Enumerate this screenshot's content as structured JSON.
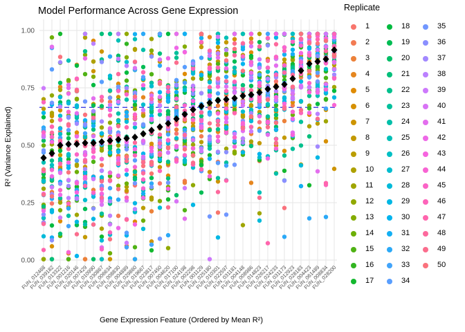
{
  "chart_data": {
    "type": "scatter",
    "title": "Model Performance Across Gene Expression",
    "xlabel": "Gene Expression Feature (Ordered by Mean R²)",
    "ylabel": "R² (Variance Explained)",
    "ylim": [
      0,
      1
    ],
    "yticks": [
      0.0,
      0.25,
      0.5,
      0.75,
      1.0
    ],
    "ytick_labels": [
      "0.00",
      "0.25",
      "0.50",
      "0.75",
      "1.00"
    ],
    "grid": true,
    "background": "#ffffff",
    "gridline_color": "#e6e6e6",
    "tick_label_color": "#4d4d4d",
    "reference_line": {
      "value": 0.665,
      "style": "dashed",
      "color": "#2b2bdf"
    },
    "mean_marker": {
      "shape": "diamond",
      "color": "#000000",
      "meaning": "mean R² per feature"
    },
    "n_features": 36,
    "n_replicates": 50,
    "point_seed": 42,
    "outlier_rate": 0.07,
    "legend": {
      "title": "Replicate",
      "position": "right",
      "columns": 3,
      "rows_per_column": 17,
      "entries": [
        "1",
        "2",
        "3",
        "4",
        "5",
        "6",
        "7",
        "8",
        "9",
        "10",
        "11",
        "12",
        "13",
        "14",
        "15",
        "16",
        "17",
        "18",
        "19",
        "20",
        "21",
        "22",
        "23",
        "24",
        "25",
        "26",
        "27",
        "28",
        "29",
        "30",
        "31",
        "32",
        "33",
        "34",
        "35",
        "36",
        "37",
        "38",
        "39",
        "40",
        "41",
        "42",
        "43",
        "44",
        "45",
        "46",
        "47",
        "48",
        "49",
        "50"
      ]
    },
    "palette_anchors": [
      "#F8766D",
      "#DE8C00",
      "#B79F00",
      "#7CAE00",
      "#00BA38",
      "#00C08B",
      "#00BFC4",
      "#00B4F0",
      "#619CFF",
      "#C77CFF",
      "#F564E3",
      "#FF64B0",
      "#F8766D"
    ],
    "features": [
      {
        "label": "FUN_012468",
        "mean_r2": 0.445,
        "sd": 0.23
      },
      {
        "label": "FUN_039182",
        "mean_r2": 0.465,
        "sd": 0.23
      },
      {
        "label": "FUN_013322",
        "mean_r2": 0.5,
        "sd": 0.23
      },
      {
        "label": "FUN_001216",
        "mean_r2": 0.505,
        "sd": 0.23
      },
      {
        "label": "FUN_020146",
        "mean_r2": 0.505,
        "sd": 0.23
      },
      {
        "label": "FUN_007429",
        "mean_r2": 0.51,
        "sd": 0.23
      },
      {
        "label": "FUN_010990",
        "mean_r2": 0.51,
        "sd": 0.23
      },
      {
        "label": "FUN_030867",
        "mean_r2": 0.515,
        "sd": 0.23
      },
      {
        "label": "FUN_006634",
        "mean_r2": 0.52,
        "sd": 0.23
      },
      {
        "label": "FUN_008830",
        "mean_r2": 0.525,
        "sd": 0.22
      },
      {
        "label": "FUN_004889",
        "mean_r2": 0.53,
        "sd": 0.22
      },
      {
        "label": "FUN_029860",
        "mean_r2": 0.535,
        "sd": 0.22
      },
      {
        "label": "FUN_019667",
        "mean_r2": 0.55,
        "sd": 0.22
      },
      {
        "label": "FUN_023817",
        "mean_r2": 0.565,
        "sd": 0.21
      },
      {
        "label": "FUN_007450",
        "mean_r2": 0.58,
        "sd": 0.21
      },
      {
        "label": "FUN_004620",
        "mean_r2": 0.595,
        "sd": 0.21
      },
      {
        "label": "FUN_017100",
        "mean_r2": 0.615,
        "sd": 0.2
      },
      {
        "label": "FUN_024198",
        "mean_r2": 0.635,
        "sd": 0.2
      },
      {
        "label": "FUN_002298",
        "mean_r2": 0.655,
        "sd": 0.19
      },
      {
        "label": "FUN_001129",
        "mean_r2": 0.67,
        "sd": 0.19
      },
      {
        "label": "FUN_025180",
        "mean_r2": 0.685,
        "sd": 0.18
      },
      {
        "label": "FUN_010301",
        "mean_r2": 0.695,
        "sd": 0.18
      },
      {
        "label": "FUN_022597",
        "mean_r2": 0.7,
        "sd": 0.18
      },
      {
        "label": "FUN_031181",
        "mean_r2": 0.705,
        "sd": 0.17
      },
      {
        "label": "FUN_004148",
        "mean_r2": 0.715,
        "sd": 0.17
      },
      {
        "label": "FUN_008986",
        "mean_r2": 0.72,
        "sd": 0.17
      },
      {
        "label": "FUN_014823",
        "mean_r2": 0.73,
        "sd": 0.16
      },
      {
        "label": "FUN_026217",
        "mean_r2": 0.745,
        "sd": 0.16
      },
      {
        "label": "FUN_024233",
        "mean_r2": 0.755,
        "sd": 0.16
      },
      {
        "label": "FUN_031173",
        "mean_r2": 0.765,
        "sd": 0.15
      },
      {
        "label": "FUN_012923",
        "mean_r2": 0.79,
        "sd": 0.15
      },
      {
        "label": "FUN_028183",
        "mean_r2": 0.825,
        "sd": 0.14
      },
      {
        "label": "FUN_004423",
        "mean_r2": 0.855,
        "sd": 0.13
      },
      {
        "label": "FUN_061489",
        "mean_r2": 0.865,
        "sd": 0.13
      },
      {
        "label": "FUN_008834",
        "mean_r2": 0.875,
        "sd": 0.13
      },
      {
        "label": "FUN_028200",
        "mean_r2": 0.915,
        "sd": 0.11
      }
    ]
  }
}
